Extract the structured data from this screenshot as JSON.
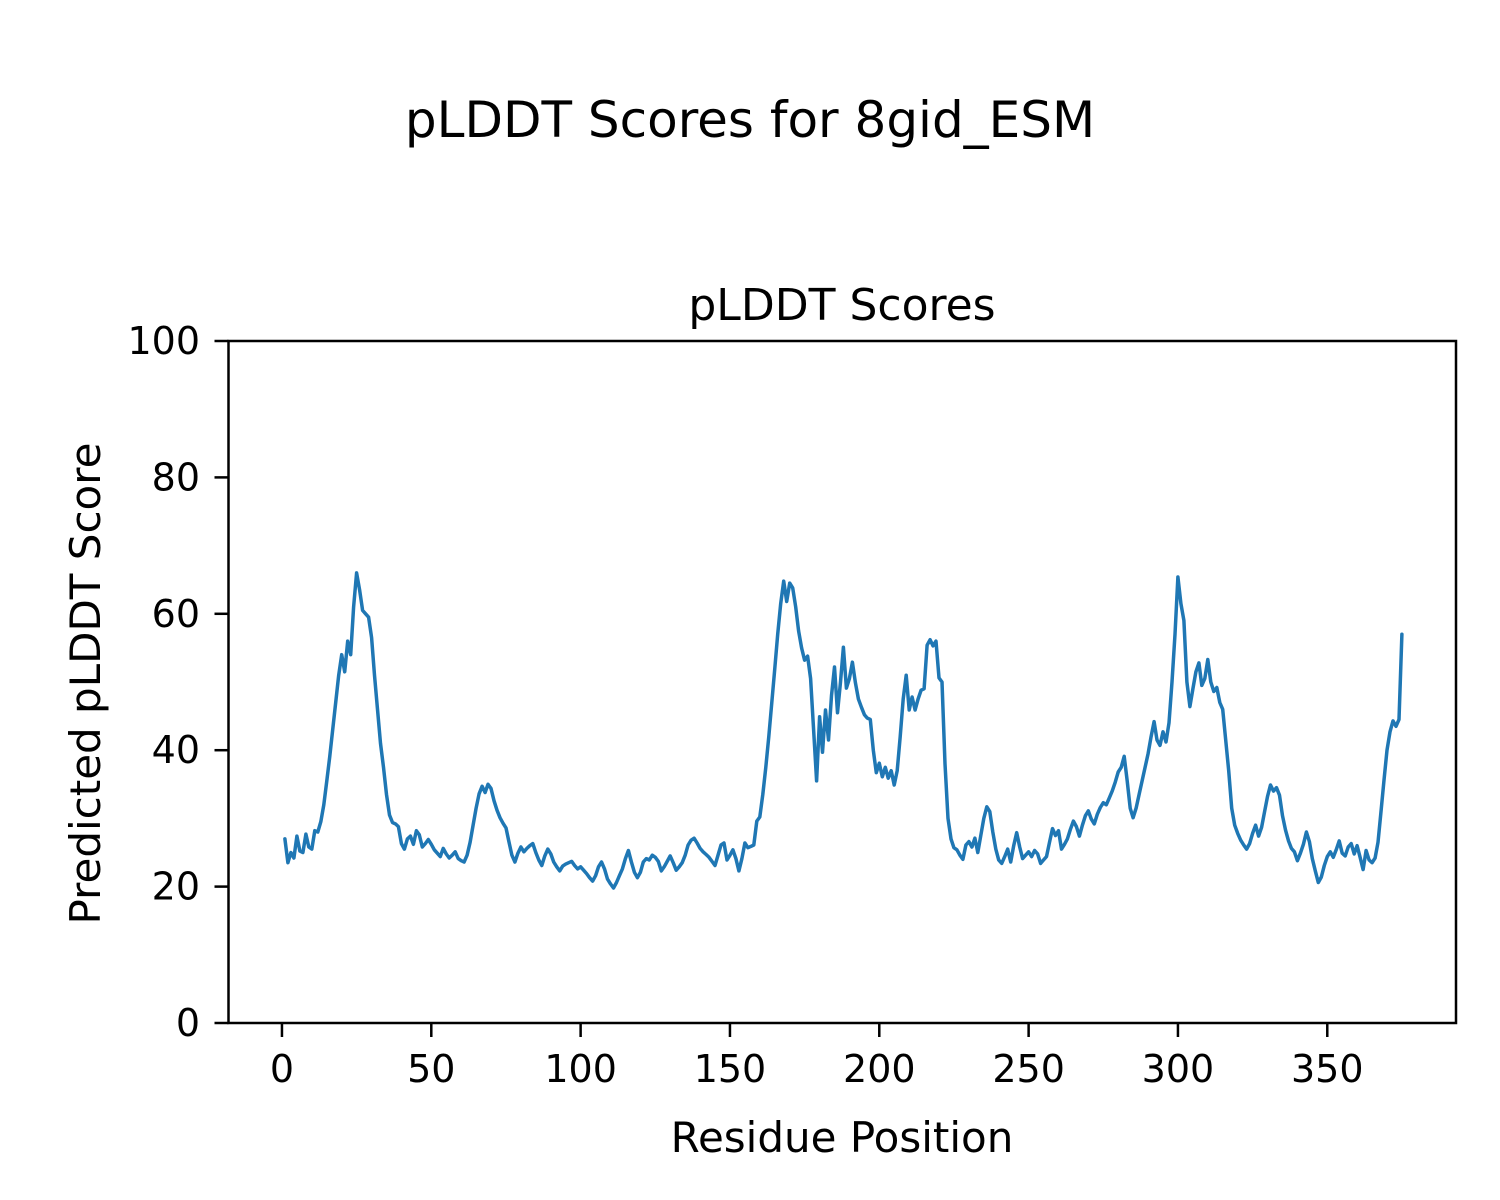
{
  "figure": {
    "title": "pLDDT Scores for 8gid_ESM",
    "background": "#ffffff"
  },
  "chart_data": {
    "type": "line",
    "title": "pLDDT Scores",
    "xlabel": "Residue Position",
    "ylabel": "Predicted pLDDT Score",
    "line_color": "#1f77b4",
    "axis_color": "#000000",
    "grid": false,
    "xlim": [
      -17.9,
      393.1
    ],
    "ylim": [
      0,
      100
    ],
    "xticks": [
      0,
      50,
      100,
      150,
      200,
      250,
      300,
      350
    ],
    "yticks": [
      0,
      20,
      40,
      60,
      80,
      100
    ],
    "series": [
      {
        "name": "pLDDT",
        "x_start": 1,
        "x_step": 1,
        "values": [
          27.0,
          23.5,
          25.0,
          24.2,
          27.4,
          25.2,
          25.0,
          27.7,
          25.8,
          25.5,
          28.2,
          28.0,
          29.5,
          32.0,
          35.5,
          39.0,
          43.0,
          47.0,
          51.0,
          54.0,
          51.5,
          56.0,
          54.0,
          61.0,
          66.0,
          63.5,
          60.5,
          60.0,
          59.5,
          56.5,
          51.0,
          46.0,
          41.0,
          37.5,
          33.5,
          30.5,
          29.4,
          29.2,
          28.8,
          26.3,
          25.5,
          27.0,
          27.4,
          26.2,
          28.2,
          27.6,
          25.8,
          26.3,
          26.9,
          26.2,
          25.4,
          24.9,
          24.4,
          25.6,
          24.8,
          24.2,
          24.6,
          25.1,
          24.1,
          23.8,
          23.6,
          24.6,
          26.5,
          29.0,
          31.5,
          33.6,
          34.7,
          33.8,
          35.0,
          34.4,
          32.6,
          31.2,
          30.1,
          29.3,
          28.6,
          26.6,
          24.6,
          23.6,
          24.9,
          25.8,
          25.1,
          25.6,
          26.0,
          26.3,
          25.0,
          23.9,
          23.1,
          24.5,
          25.5,
          24.8,
          23.6,
          22.9,
          22.3,
          23.0,
          23.3,
          23.5,
          23.7,
          23.1,
          22.6,
          22.9,
          22.4,
          21.9,
          21.3,
          20.8,
          21.6,
          22.9,
          23.6,
          22.6,
          21.1,
          20.4,
          19.8,
          20.6,
          21.6,
          22.6,
          24.1,
          25.3,
          23.6,
          22.1,
          21.3,
          22.1,
          23.6,
          24.1,
          23.9,
          24.6,
          24.3,
          23.7,
          22.3,
          22.9,
          23.7,
          24.5,
          23.5,
          22.4,
          22.9,
          23.5,
          24.6,
          26.1,
          26.8,
          27.1,
          26.4,
          25.6,
          25.1,
          24.7,
          24.3,
          23.7,
          23.1,
          24.6,
          26.1,
          26.4,
          23.9,
          24.6,
          25.4,
          24.1,
          22.3,
          24.1,
          26.4,
          25.7,
          25.9,
          26.1,
          29.6,
          30.2,
          33.5,
          37.5,
          42.0,
          47.0,
          52.0,
          57.0,
          61.5,
          64.8,
          61.8,
          64.5,
          63.8,
          61.0,
          57.5,
          55.0,
          53.2,
          53.8,
          50.5,
          43.0,
          35.5,
          44.9,
          39.7,
          45.9,
          41.5,
          48.0,
          52.2,
          45.5,
          50.0,
          55.1,
          49.1,
          50.5,
          52.9,
          49.9,
          47.5,
          46.3,
          45.2,
          44.7,
          44.5,
          40.0,
          36.7,
          38.1,
          36.1,
          37.5,
          35.9,
          37.0,
          34.9,
          37.0,
          42.0,
          47.5,
          51.0,
          45.9,
          47.8,
          45.9,
          47.5,
          48.8,
          49.0,
          55.4,
          56.2,
          55.3,
          56.0,
          50.6,
          50.0,
          38.0,
          30.0,
          27.0,
          25.7,
          25.4,
          24.6,
          24.0,
          26.1,
          26.6,
          25.8,
          27.1,
          25.0,
          27.5,
          30.0,
          31.7,
          31.0,
          28.0,
          25.5,
          23.9,
          23.4,
          24.4,
          25.5,
          23.6,
          26.0,
          27.9,
          25.8,
          24.1,
          24.6,
          25.1,
          24.4,
          25.3,
          24.8,
          23.4,
          23.9,
          24.4,
          26.5,
          28.5,
          27.5,
          28.2,
          25.5,
          26.2,
          27.0,
          28.4,
          29.6,
          28.8,
          27.4,
          29.0,
          30.4,
          31.1,
          29.9,
          29.2,
          30.6,
          31.6,
          32.3,
          32.0,
          33.0,
          34.0,
          35.3,
          36.8,
          37.5,
          39.1,
          35.5,
          31.5,
          30.1,
          31.5,
          33.5,
          35.5,
          37.5,
          39.5,
          42.0,
          44.2,
          41.5,
          40.7,
          42.7,
          41.2,
          44.0,
          50.0,
          57.0,
          65.4,
          61.5,
          59.0,
          50.0,
          46.4,
          49.0,
          51.5,
          52.8,
          49.5,
          50.5,
          53.3,
          50.0,
          48.6,
          49.2,
          47.0,
          46.0,
          41.5,
          37.0,
          31.5,
          29.0,
          27.8,
          26.8,
          26.1,
          25.5,
          26.3,
          27.8,
          29.0,
          27.4,
          28.7,
          31.0,
          33.2,
          34.9,
          34.0,
          34.5,
          33.4,
          30.4,
          28.3,
          26.7,
          25.6,
          25.1,
          23.8,
          24.9,
          26.2,
          28.0,
          26.6,
          24.1,
          22.3,
          20.6,
          21.4,
          23.1,
          24.4,
          25.1,
          24.3,
          25.4,
          26.7,
          24.9,
          24.5,
          25.8,
          26.3,
          24.8,
          26.0,
          24.3,
          22.5,
          25.3,
          23.9,
          23.5,
          24.2,
          26.5,
          31.0,
          35.6,
          40.0,
          42.7,
          44.3,
          43.5,
          44.5,
          57.0
        ]
      }
    ]
  }
}
